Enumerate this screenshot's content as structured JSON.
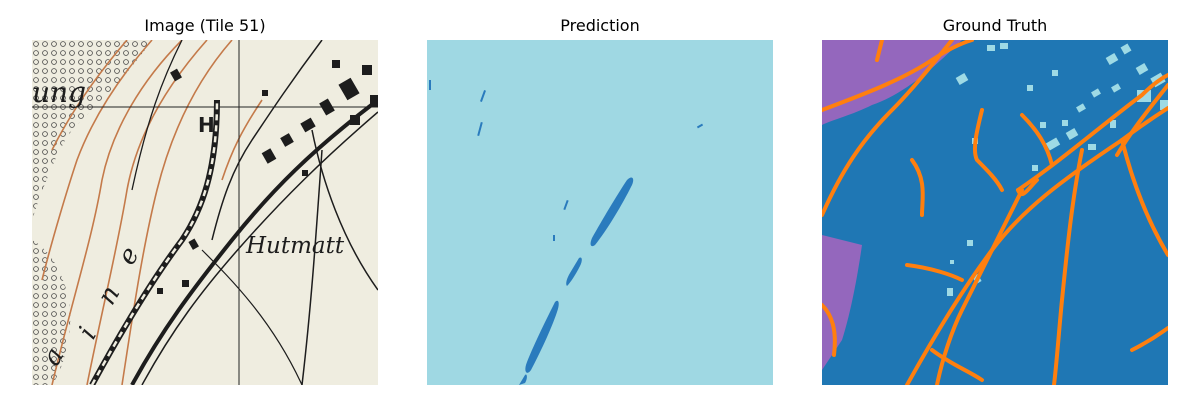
{
  "panels": [
    {
      "title": "Image (Tile 51)"
    },
    {
      "title": "Prediction"
    },
    {
      "title": "Ground Truth"
    }
  ],
  "map": {
    "labels": {
      "rung": "ung",
      "h": "H",
      "hutmatt": "Hutmatt",
      "aine_a": "a",
      "aine_i": "i",
      "aine_n": "n",
      "aine_e": "e"
    }
  },
  "colors": {
    "paper": "#efede0",
    "contour": "#c47a4a",
    "ink": "#1d1d1d",
    "pred_bg": "#9fd8e3",
    "pred_fg": "#2a7bbd",
    "gt_blue": "#1f77b4",
    "gt_purple": "#9467bd",
    "gt_orange": "#ff7f0e",
    "gt_light": "#9edae5"
  }
}
